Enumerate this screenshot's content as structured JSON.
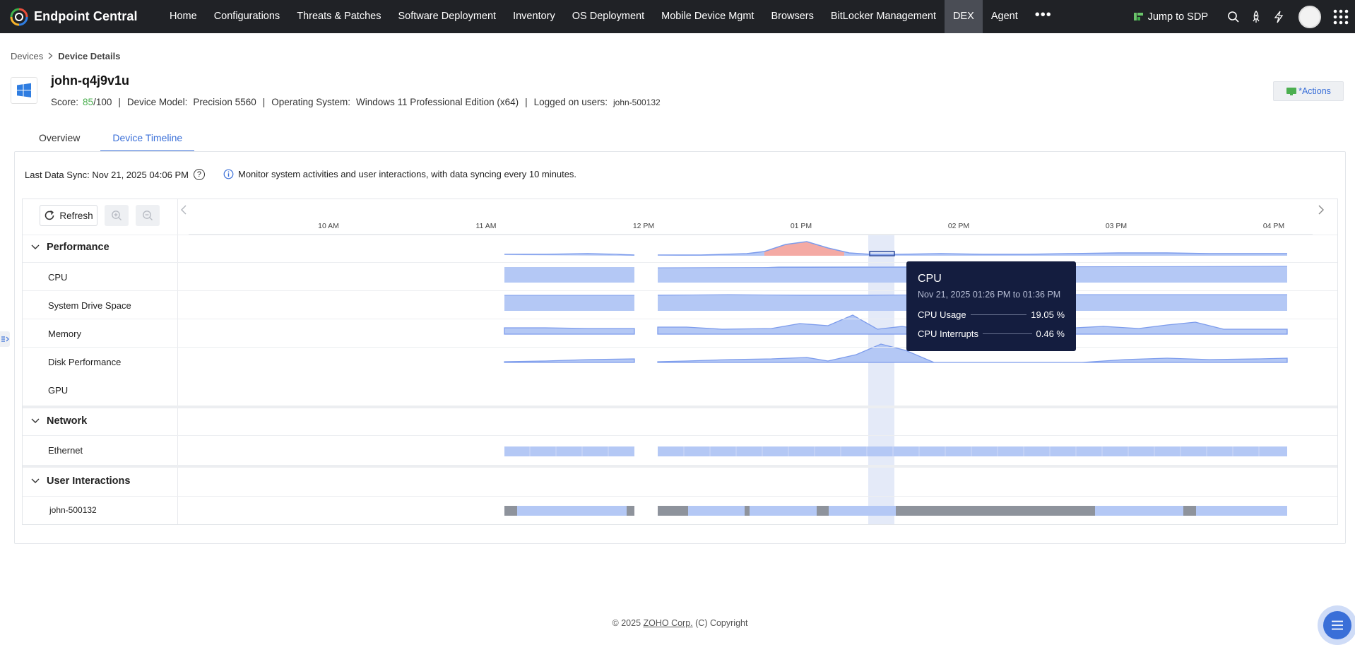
{
  "app": {
    "name": "Endpoint Central"
  },
  "nav": {
    "items": [
      "Home",
      "Configurations",
      "Threats & Patches",
      "Software Deployment",
      "Inventory",
      "OS Deployment",
      "Mobile Device Mgmt",
      "Browsers",
      "BitLocker Management",
      "DEX",
      "Agent"
    ],
    "active": "DEX",
    "more": "•••",
    "jump_label": "Jump to SDP"
  },
  "breadcrumb": {
    "parent": "Devices",
    "separator": ">",
    "current": "Device Details"
  },
  "device": {
    "name": "john-q4j9v1u",
    "score_label": "Score:",
    "score_value": "85",
    "score_max": "/100",
    "model_label": "Device Model:",
    "model_value": "Precision 5560",
    "os_label": "Operating System:",
    "os_value": "Windows 11 Professional Edition (x64)",
    "users_label": "Logged on users:",
    "users_value": "john-500132",
    "separator": "|"
  },
  "actions_label": "Actions",
  "tabs": [
    {
      "label": "Overview",
      "active": false
    },
    {
      "label": "Device Timeline",
      "active": true
    }
  ],
  "sync": {
    "text": "Last Data Sync: Nov 21, 2025 04:06 PM",
    "help": "?",
    "info": "Monitor system activities and user interactions, with data syncing every 10 minutes."
  },
  "timeline": {
    "refresh_label": "Refresh",
    "hours": [
      "10 AM",
      "11 AM",
      "12 PM",
      "01 PM",
      "02 PM",
      "03 PM",
      "04 PM"
    ],
    "groups": {
      "performance": "Performance",
      "network": "Network",
      "user_interactions": "User Interactions"
    },
    "rows": {
      "cpu": "CPU",
      "system_drive": "System Drive Space",
      "memory": "Memory",
      "disk": "Disk Performance",
      "gpu": "GPU",
      "ethernet": "Ethernet",
      "user": "john-500132"
    }
  },
  "tooltip": {
    "title": "CPU",
    "range": "Nov 21, 2025 01:26 PM to 01:36 PM",
    "metrics": [
      {
        "label": "CPU Usage",
        "value": "19.05 %"
      },
      {
        "label": "CPU Interrupts",
        "value": "0.46 %"
      }
    ]
  },
  "footer": {
    "prefix": "© 2025 ",
    "company": "ZOHO Corp.",
    "suffix": " (C) Copyright"
  },
  "colors": {
    "accent": "#3a6fd8",
    "topbar": "#202226",
    "series_fill": "#b4c8f5",
    "series_line": "#7d9cec",
    "alert_fill": "#f4aaa4",
    "active_session": "#8e939c",
    "tooltip_bg": "#141d3f"
  }
}
